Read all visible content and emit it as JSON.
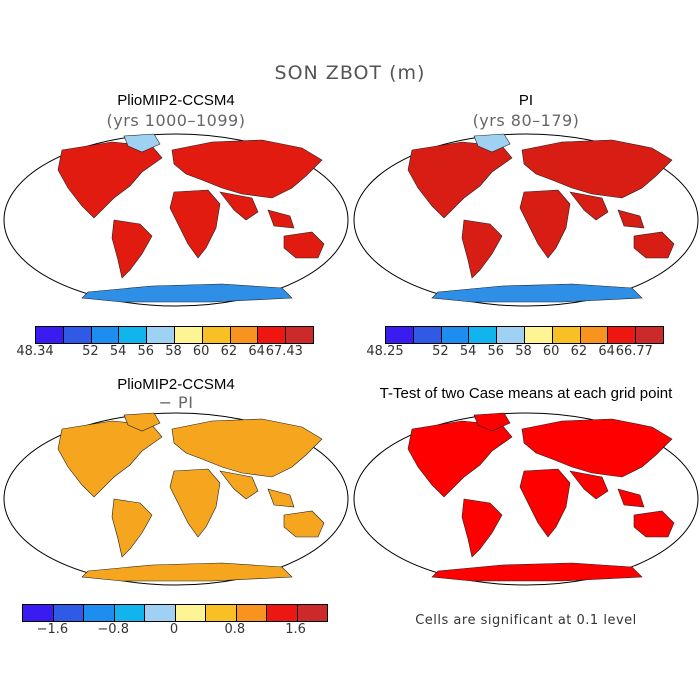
{
  "figure": {
    "title": "SON ZBOT (m)"
  },
  "panels": {
    "top_left": {
      "title": "PlioMIP2-CCSM4",
      "subtitle": "(yrs 1000–1099)",
      "fill": "#e11b10"
    },
    "top_right": {
      "title": "PI",
      "subtitle": "(yrs 80–179)",
      "fill": "#d81d14"
    },
    "bottom_left": {
      "title": "PlioMIP2-CCSM4",
      "subtitle": "− PI",
      "fill": "#f5a51e"
    },
    "bottom_right": {
      "title": "T-Test of two Case means at each grid point",
      "fill": "#ff0000",
      "note": "Cells are significant at 0.1 level"
    }
  },
  "colorbars": {
    "top_left": {
      "colors": [
        "#3a1cf0",
        "#2f5ae6",
        "#1d8ef0",
        "#12b4ee",
        "#9fd2f2",
        "#fff494",
        "#f9c026",
        "#f7931e",
        "#ee1610",
        "#cc2a2a"
      ],
      "labels": [
        "48.34",
        "52",
        "54",
        "56",
        "58",
        "60",
        "62",
        "64",
        "67.43"
      ]
    },
    "top_right": {
      "colors": [
        "#3a1cf0",
        "#2f5ae6",
        "#1d8ef0",
        "#12b4ee",
        "#9fd2f2",
        "#fff494",
        "#f9c026",
        "#f7931e",
        "#ee1610",
        "#cc2a2a"
      ],
      "labels": [
        "48.25",
        "52",
        "54",
        "56",
        "58",
        "60",
        "62",
        "64",
        "66.77"
      ]
    },
    "bottom_left": {
      "colors": [
        "#3a1cf0",
        "#2f5ae6",
        "#1d8ef0",
        "#12b4ee",
        "#9fd2f2",
        "#fff494",
        "#f9c026",
        "#f7931e",
        "#ee1610",
        "#cc2a2a"
      ],
      "labels": [
        "−1.6",
        "−0.8",
        "0",
        "0.8",
        "1.6"
      ]
    }
  }
}
